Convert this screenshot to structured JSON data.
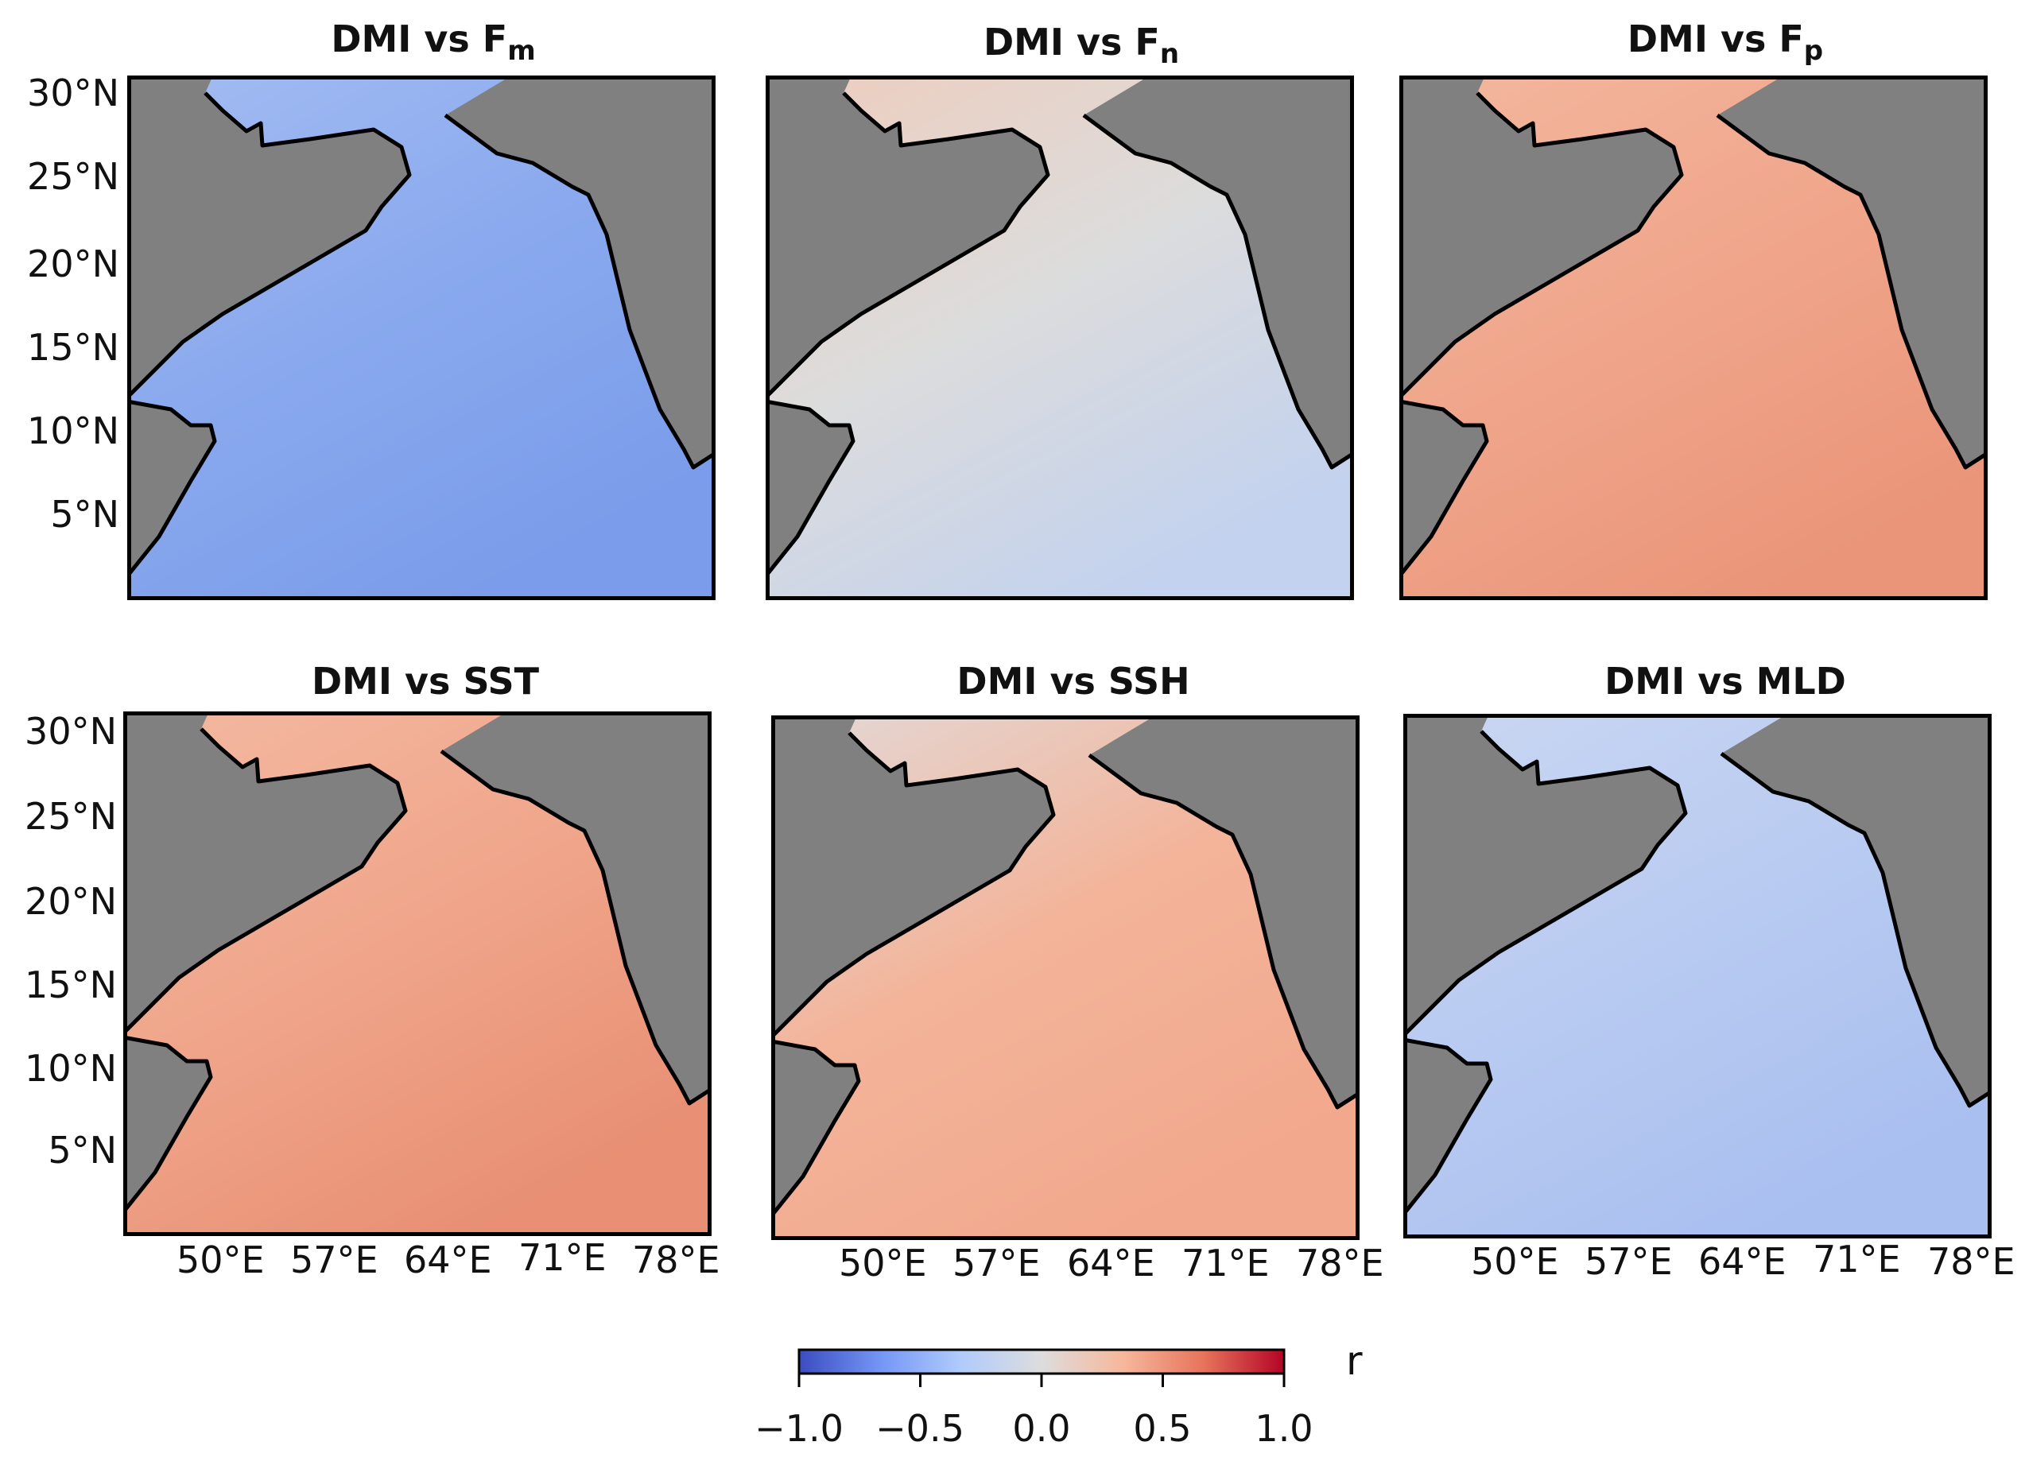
{
  "panels": [
    {
      "title_main": "DMI vs F",
      "title_sub": "m",
      "mean_color": "#8aa9ee",
      "tone_light": "#a3bcf2",
      "tone_dark": "#7a9cea",
      "show_ylabels": true,
      "show_xlabels": false
    },
    {
      "title_main": "DMI vs F",
      "title_sub": "n",
      "mean_color": "#dcdcdc",
      "tone_light": "#eecdbd",
      "tone_dark": "#c3d2ee",
      "show_ylabels": false,
      "show_xlabels": false
    },
    {
      "title_main": "DMI vs F",
      "title_sub": "p",
      "mean_color": "#f0a68b",
      "tone_light": "#f3b79e",
      "tone_dark": "#ea957a",
      "show_ylabels": false,
      "show_xlabels": false
    },
    {
      "title_main": "DMI vs SST",
      "title_sub": "",
      "mean_color": "#f0a68b",
      "tone_light": "#f3b9a1",
      "tone_dark": "#e88f74",
      "show_ylabels": true,
      "show_xlabels": true
    },
    {
      "title_main": "DMI vs SSH",
      "title_sub": "",
      "mean_color": "#f3b49a",
      "tone_light": "#e3d9d7",
      "tone_dark": "#f2a88c",
      "show_ylabels": false,
      "show_xlabels": true
    },
    {
      "title_main": "DMI vs MLD",
      "title_sub": "",
      "mean_color": "#b9cbf1",
      "tone_light": "#cad7f2",
      "tone_dark": "#a9bff0",
      "show_ylabels": false,
      "show_xlabels": true
    }
  ],
  "lat_ticks": [
    "30°N",
    "25°N",
    "20°N",
    "15°N",
    "10°N",
    "5°N"
  ],
  "lon_ticks": [
    "50°E",
    "57°E",
    "64°E",
    "71°E",
    "78°E"
  ],
  "colorbar": {
    "label": "r",
    "ticks": [
      "−1.0",
      "−0.5",
      "0.0",
      "0.5",
      "1.0"
    ],
    "range": [
      -1.0,
      1.0
    ],
    "colors": [
      "#3b4cc0",
      "#7396f5",
      "#b0cbfc",
      "#dddddd",
      "#f6b89c",
      "#e7745b",
      "#b40426"
    ]
  },
  "colors": {
    "land": "#808080",
    "coast": "#000000"
  }
}
